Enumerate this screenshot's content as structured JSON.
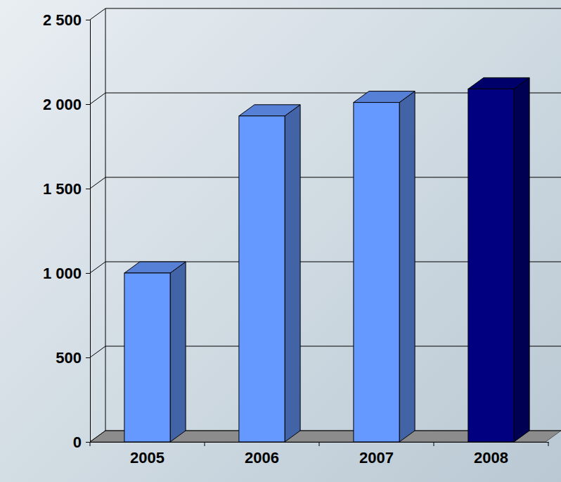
{
  "chart_data": {
    "type": "bar",
    "categories": [
      "2005",
      "2006",
      "2007",
      "2008"
    ],
    "values": [
      1000,
      1930,
      2010,
      2090
    ],
    "colors": [
      "#6699ff",
      "#6699ff",
      "#6699ff",
      "#000080"
    ],
    "ylim": [
      0,
      2500
    ],
    "yticks": [
      0,
      500,
      {
        "value": 1000,
        "label": "1 000"
      },
      {
        "value": 1500,
        "label": "1 500"
      },
      {
        "value": 2000,
        "label": "2 000"
      },
      {
        "value": 2500,
        "label": "2 500"
      }
    ],
    "grid": true
  }
}
